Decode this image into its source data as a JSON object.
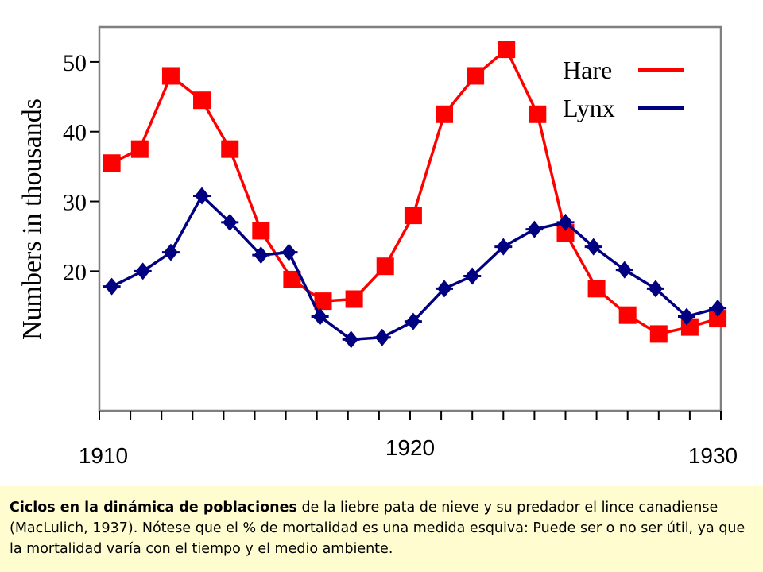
{
  "chart_data": {
    "type": "line",
    "xlabel": "",
    "ylabel": "Numbers in thousands",
    "xlim": [
      1910,
      1930
    ],
    "ylim": [
      0,
      55
    ],
    "x_tick_labels": [
      "1910",
      "1920",
      "1930"
    ],
    "y_tick_labels": [
      "20",
      "30",
      "40",
      "50"
    ],
    "legend_position": "top-right",
    "series": [
      {
        "name": "Hare",
        "color": "#ff0000",
        "marker": "square",
        "x": [
          1910.4,
          1911.3,
          1912.3,
          1913.3,
          1914.2,
          1915.2,
          1916.2,
          1917.2,
          1918.2,
          1919.2,
          1920.1,
          1921.1,
          1922.1,
          1923.1,
          1924.1,
          1925.0,
          1926.0,
          1927.0,
          1928.0,
          1929.0,
          1929.9
        ],
        "values": [
          35.5,
          37.5,
          48.0,
          44.5,
          37.5,
          25.8,
          18.8,
          15.7,
          16.0,
          20.7,
          28.0,
          42.5,
          48.0,
          51.8,
          42.5,
          25.5,
          17.5,
          13.7,
          11.0,
          12.0,
          13.2
        ]
      },
      {
        "name": "Lynx",
        "color": "#000080",
        "marker": "diamond",
        "x": [
          1910.4,
          1911.4,
          1912.3,
          1913.3,
          1914.2,
          1915.2,
          1916.1,
          1917.1,
          1918.1,
          1919.1,
          1920.1,
          1921.1,
          1922.0,
          1923.0,
          1924.0,
          1925.0,
          1925.9,
          1926.9,
          1927.9,
          1928.9,
          1929.9
        ],
        "values": [
          17.8,
          20.0,
          22.7,
          30.8,
          27.0,
          22.3,
          22.7,
          13.5,
          10.2,
          10.5,
          12.8,
          17.5,
          19.3,
          23.5,
          26.0,
          27.0,
          23.5,
          20.2,
          17.5,
          13.5,
          14.7
        ]
      }
    ]
  },
  "caption": {
    "title": "Ciclos en la dinámica de poblaciones",
    "text": " de la liebre pata de nieve y su predador el lince canadiense (MacLulich, 1937). Nótese que el % de mortalidad es una medida esquiva: Puede ser o no ser útil, ya que la mortalidad varía con el tiempo y el medio ambiente."
  }
}
